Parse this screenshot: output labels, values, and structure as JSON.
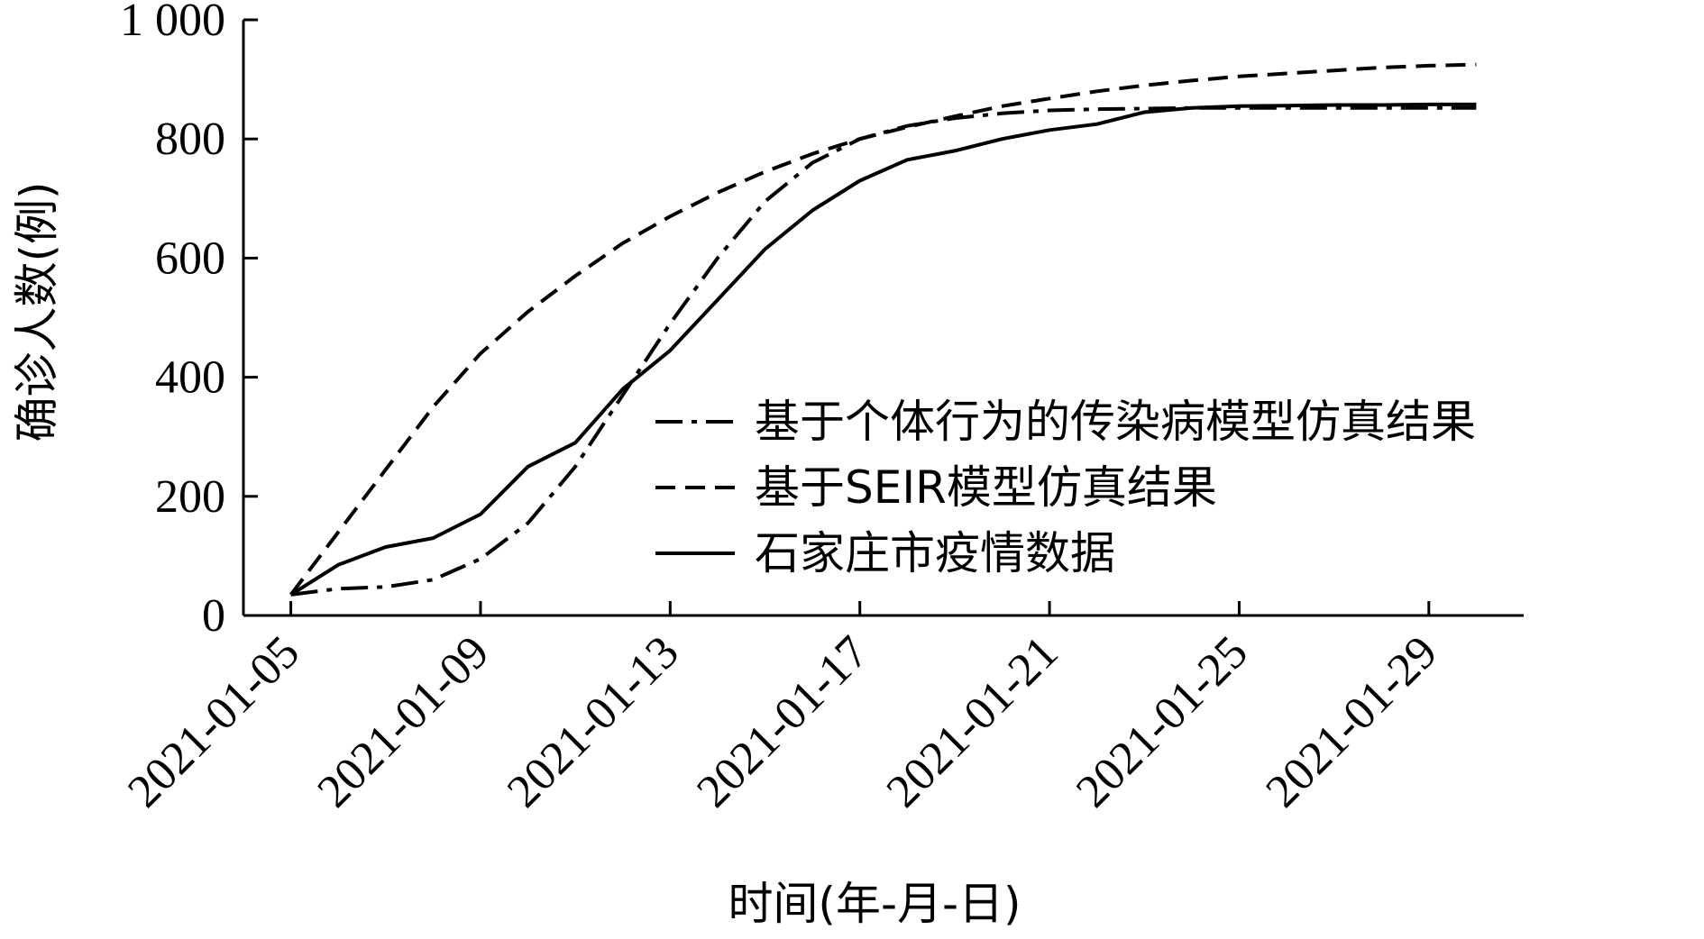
{
  "chart_data": {
    "type": "line",
    "title": "",
    "xlabel": "时间(年-月-日)",
    "ylabel": "确诊人数(例)",
    "ylim": [
      0,
      1000
    ],
    "yticks": [
      0,
      200,
      400,
      600,
      800,
      1000
    ],
    "ytick_labels": [
      "0",
      "200",
      "400",
      "600",
      "800",
      "1 000"
    ],
    "xlim": [
      "2021-01-04",
      "2021-01-31"
    ],
    "xticks": [
      "2021-01-05",
      "2021-01-09",
      "2021-01-13",
      "2021-01-17",
      "2021-01-21",
      "2021-01-25",
      "2021-01-29"
    ],
    "grid": false,
    "legend_position": "center-right",
    "series": [
      {
        "name": "基于个体行为的传染病模型仿真结果",
        "style": "dashdot",
        "color": "#000000",
        "x": [
          "2021-01-05",
          "2021-01-06",
          "2021-01-07",
          "2021-01-08",
          "2021-01-09",
          "2021-01-10",
          "2021-01-11",
          "2021-01-12",
          "2021-01-13",
          "2021-01-14",
          "2021-01-15",
          "2021-01-16",
          "2021-01-17",
          "2021-01-18",
          "2021-01-19",
          "2021-01-20",
          "2021-01-21",
          "2021-01-22",
          "2021-01-23",
          "2021-01-24",
          "2021-01-25",
          "2021-01-26",
          "2021-01-27",
          "2021-01-28",
          "2021-01-29",
          "2021-01-30"
        ],
        "values": [
          35,
          45,
          48,
          60,
          95,
          155,
          250,
          370,
          490,
          600,
          695,
          760,
          800,
          822,
          835,
          843,
          848,
          850,
          851,
          852,
          852,
          852,
          852,
          852,
          852,
          852
        ]
      },
      {
        "name": "基于SEIR模型仿真结果",
        "style": "dashed",
        "color": "#000000",
        "x": [
          "2021-01-05",
          "2021-01-06",
          "2021-01-07",
          "2021-01-08",
          "2021-01-09",
          "2021-01-10",
          "2021-01-11",
          "2021-01-12",
          "2021-01-13",
          "2021-01-14",
          "2021-01-15",
          "2021-01-16",
          "2021-01-17",
          "2021-01-18",
          "2021-01-19",
          "2021-01-20",
          "2021-01-21",
          "2021-01-22",
          "2021-01-23",
          "2021-01-24",
          "2021-01-25",
          "2021-01-26",
          "2021-01-27",
          "2021-01-28",
          "2021-01-29",
          "2021-01-30"
        ],
        "values": [
          35,
          140,
          245,
          350,
          440,
          510,
          570,
          625,
          670,
          710,
          745,
          775,
          800,
          820,
          838,
          855,
          868,
          880,
          890,
          898,
          905,
          910,
          915,
          920,
          923,
          925
        ]
      },
      {
        "name": "石家庄市疫情数据",
        "style": "solid",
        "color": "#000000",
        "x": [
          "2021-01-05",
          "2021-01-06",
          "2021-01-07",
          "2021-01-08",
          "2021-01-09",
          "2021-01-10",
          "2021-01-11",
          "2021-01-12",
          "2021-01-13",
          "2021-01-14",
          "2021-01-15",
          "2021-01-16",
          "2021-01-17",
          "2021-01-18",
          "2021-01-19",
          "2021-01-20",
          "2021-01-21",
          "2021-01-22",
          "2021-01-23",
          "2021-01-24",
          "2021-01-25",
          "2021-01-26",
          "2021-01-27",
          "2021-01-28",
          "2021-01-29",
          "2021-01-30"
        ],
        "values": [
          35,
          85,
          115,
          130,
          170,
          250,
          290,
          380,
          445,
          530,
          615,
          680,
          730,
          765,
          780,
          800,
          815,
          825,
          845,
          852,
          855,
          856,
          857,
          857,
          858,
          858
        ]
      }
    ]
  }
}
